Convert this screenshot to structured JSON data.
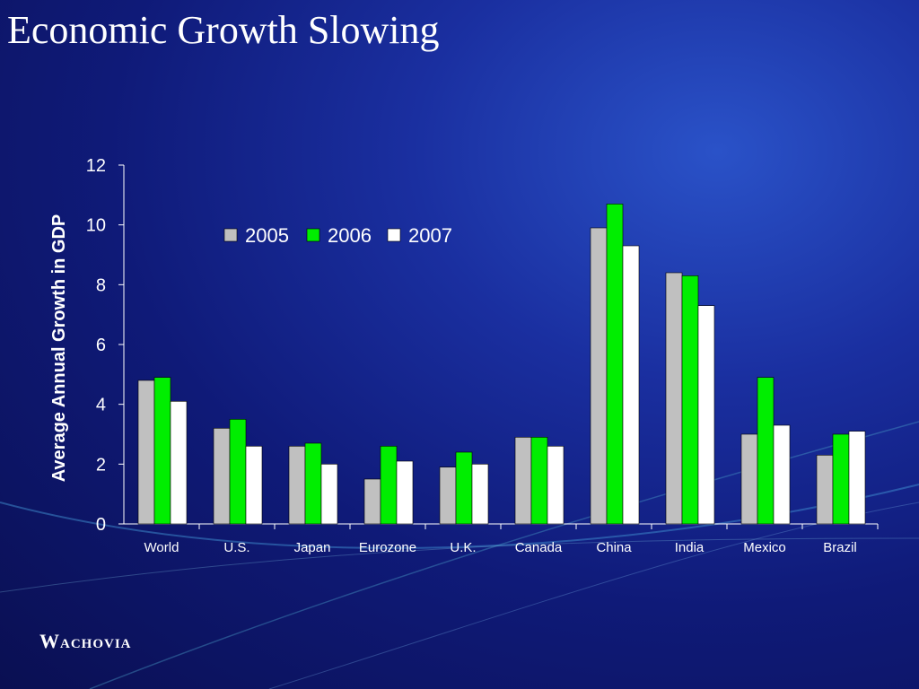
{
  "slide": {
    "title": "Economic Growth Slowing"
  },
  "logo": {
    "text": "Wachovia"
  },
  "colors": {
    "2005": "#c0c0c0",
    "2006": "#00ee00",
    "2007": "#ffffff",
    "axis": "#ffffff"
  },
  "chart_data": {
    "type": "bar",
    "title": "",
    "xlabel": "",
    "ylabel": "Average Annual Growth in GDP",
    "ylim": [
      0,
      12
    ],
    "yticks": [
      0,
      2,
      4,
      6,
      8,
      10,
      12
    ],
    "legend_position": "top-center",
    "grid": false,
    "categories": [
      "World",
      "U.S.",
      "Japan",
      "Eurozone",
      "U.K.",
      "Canada",
      "China",
      "India",
      "Mexico",
      "Brazil"
    ],
    "series": [
      {
        "name": "2005",
        "values": [
          4.8,
          3.2,
          2.6,
          1.5,
          1.9,
          2.9,
          9.9,
          8.4,
          3.0,
          2.3
        ]
      },
      {
        "name": "2006",
        "values": [
          4.9,
          3.5,
          2.7,
          2.6,
          2.4,
          2.9,
          10.7,
          8.3,
          4.9,
          3.0
        ]
      },
      {
        "name": "2007",
        "values": [
          4.1,
          2.6,
          2.0,
          2.1,
          2.0,
          2.6,
          9.3,
          7.3,
          3.3,
          3.1
        ]
      }
    ]
  }
}
